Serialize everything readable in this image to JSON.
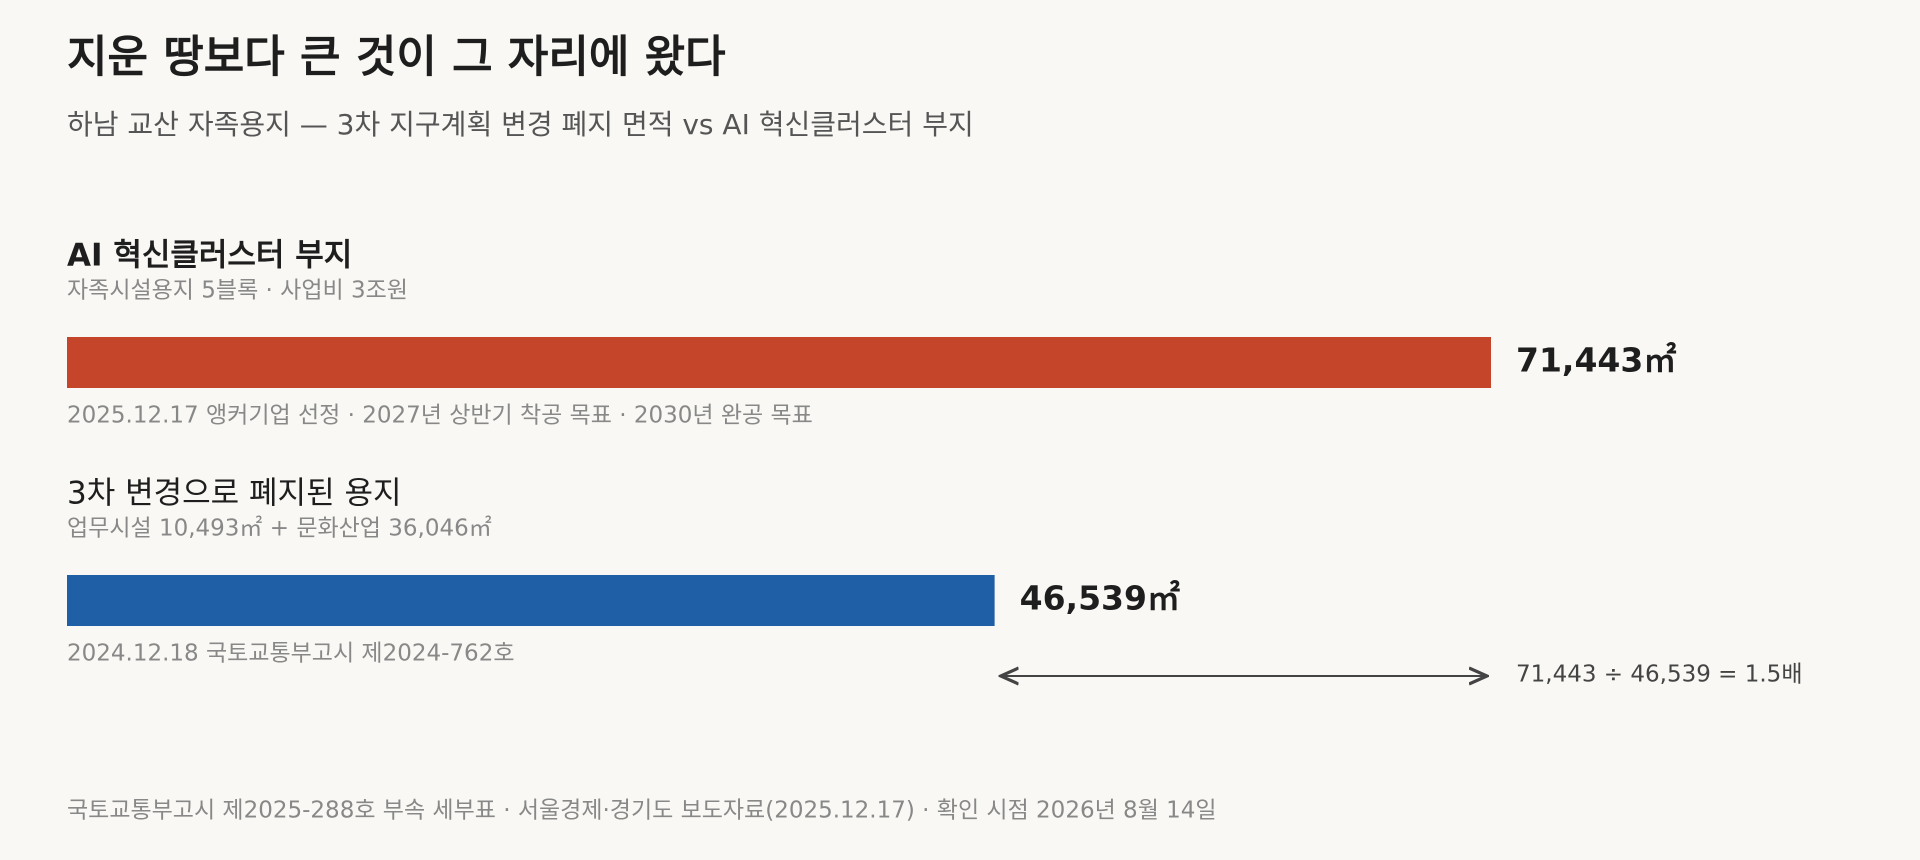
{
  "chart_data": {
    "type": "hbar",
    "title": "지운 땅보다 큰 것이 그 자리에 왔다",
    "subtitle": "하남 교산 자족용지 — 3차 지구계획 변경 폐지 면적 vs AI 혁신클러스터 부지",
    "categories": [
      "AI 혁신클러스터 부지",
      "3차 변경으로 폐지된 용지"
    ],
    "descriptions": [
      "자족시설용지 5블록 · 사업비 3조원",
      "업무시설 10,493㎡ + 문화산업 36,046㎡"
    ],
    "notes": [
      "2025.12.17 앵커기업 선정 · 2027년 상반기 착공 목표 · 2030년 완공 목표",
      "2024.12.18 국토교통부고시 제2024-762호"
    ],
    "values": [
      71443,
      46539
    ],
    "value_labels": [
      "71,443㎡",
      "46,539㎡"
    ],
    "colors": [
      "#c4452a",
      "#1f5fa6"
    ],
    "annotation": "71,443 ÷ 46,539 = 1.5배",
    "source": "국토교통부고시 제2025-288호 부속 세부표 · 서울경제·경기도 보도자료(2025.12.17) · 확인 시점 2026년 8월 14일"
  }
}
